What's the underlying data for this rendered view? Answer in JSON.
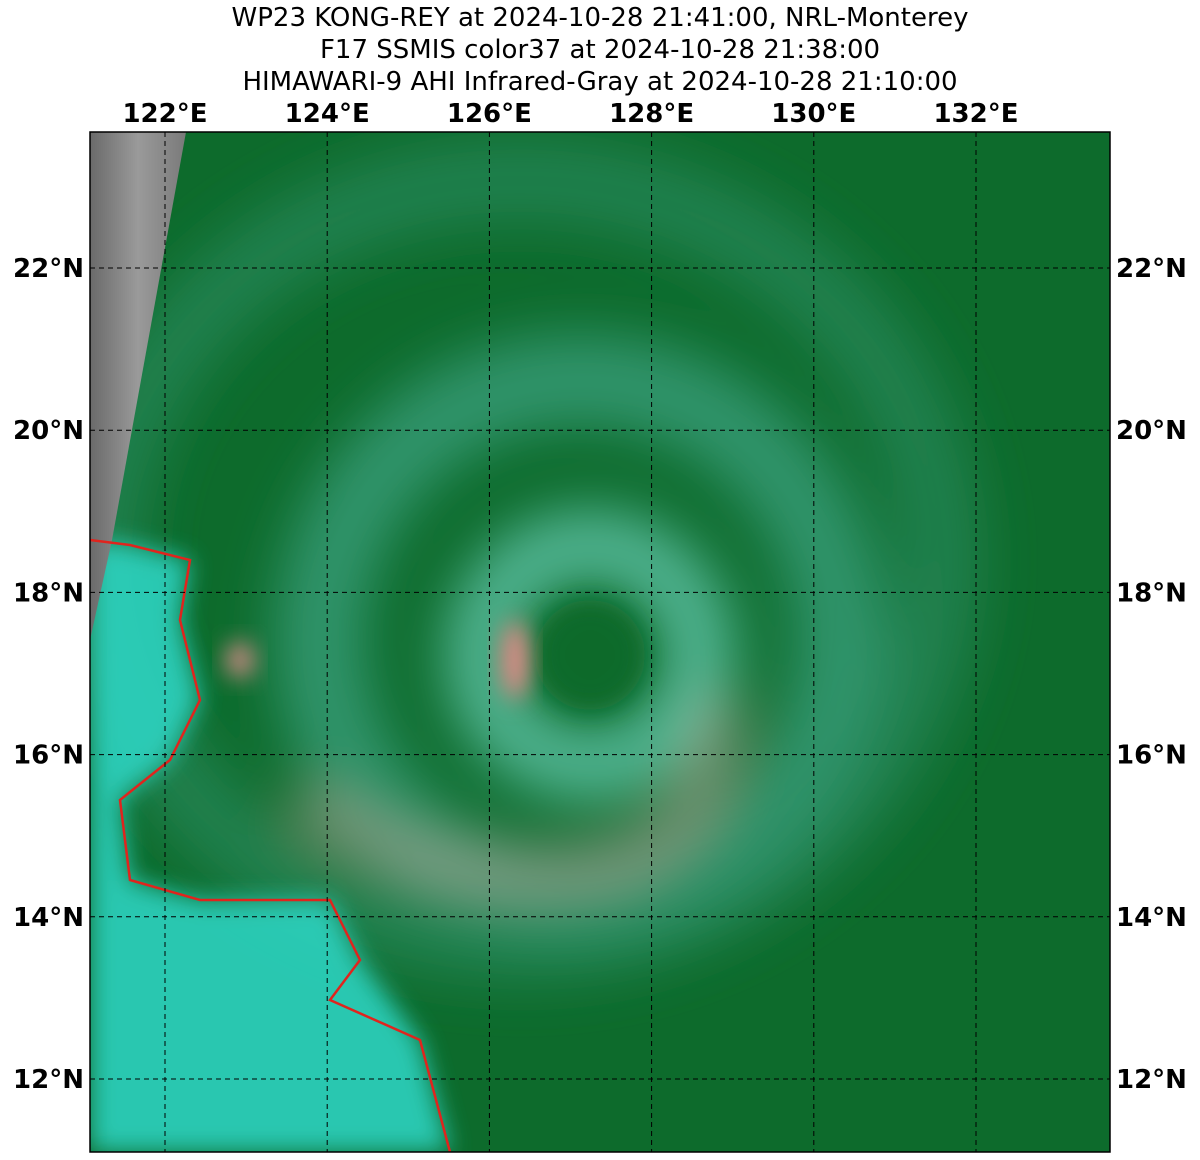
{
  "title_lines": [
    "WP23 KONG-REY at 2024-10-28 21:41:00, NRL-Monterey",
    "F17 SSMIS color37 at 2024-10-28 21:38:00",
    "HIMAWARI-9 AHI Infrared-Gray at 2024-10-28 21:10:00"
  ],
  "lon_labels": [
    "122°E",
    "124°E",
    "126°E",
    "128°E",
    "130°E",
    "132°E"
  ],
  "lat_labels": [
    "22°N",
    "20°N",
    "18°N",
    "16°N",
    "14°N",
    "12°N"
  ]
}
